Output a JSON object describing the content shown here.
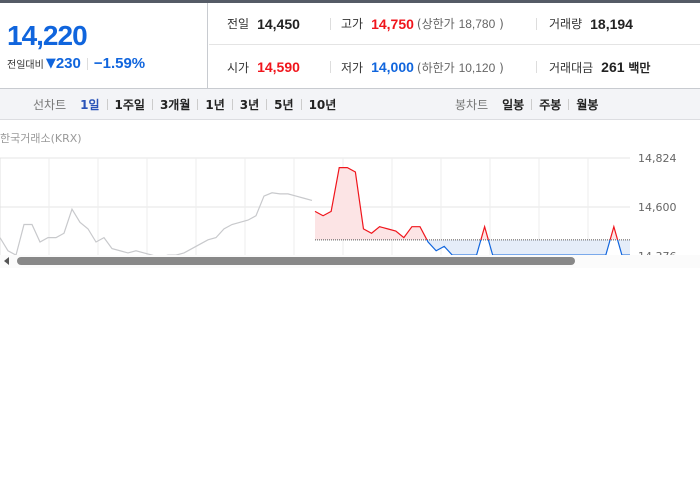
{
  "quote": {
    "price": "14,220",
    "change_label": "전일대비",
    "change_icon": "down-triangle-icon",
    "change_symbol": "▼",
    "change": "230",
    "change_pct": "−1.59%"
  },
  "stats": {
    "prev_label": "전일",
    "prev": "14,450",
    "high_label": "고가",
    "high": "14,750",
    "upper_label": "(상한가",
    "upper": "18,780",
    "upper_close": ")",
    "volume_label": "거래량",
    "volume": "18,194",
    "open_label": "시가",
    "open": "14,590",
    "low_label": "저가",
    "low": "14,000",
    "lower_label": "(하한가",
    "lower": "10,120",
    "lower_close": ")",
    "amount_label": "거래대금",
    "amount": "261",
    "amount_unit": "백만"
  },
  "toolbar": {
    "line_label": "선차트",
    "line_periods": [
      "1일",
      "1주일",
      "3개월",
      "1년",
      "3년",
      "5년",
      "10년"
    ],
    "active": "1일",
    "candle_label": "봉차트",
    "candle_periods": [
      "일봉",
      "주봉",
      "월봉"
    ]
  },
  "colors": {
    "up": "#f0151c",
    "down": "#1065dd",
    "prev_day": "#c8c9cc",
    "up_fill": "#fce4e5",
    "down_fill": "#e5edf9"
  },
  "chart_data": {
    "type": "line",
    "source": "한국거래소(KRX)",
    "ytick_labels": [
      "14,824",
      "14,600",
      "14,376"
    ],
    "yticks": [
      14824,
      14600,
      14376
    ],
    "baseline": 14450,
    "grid": true,
    "series": [
      {
        "values": [
          14460,
          14400,
          14380,
          14520,
          14520,
          14440,
          14460,
          14460,
          14480,
          14590,
          14530,
          14500,
          14440,
          14460,
          14410,
          14400,
          14390,
          14400,
          14390,
          14380,
          14370,
          14380,
          14380,
          14390,
          14410,
          14430,
          14450,
          14460,
          14500,
          14520,
          14530,
          14540,
          14560,
          14650,
          14665,
          14660,
          14660,
          14650,
          14640,
          14630
        ]
      },
      {
        "values": [
          14580,
          14560,
          14580,
          14780,
          14780,
          14760,
          14500,
          14480,
          14510,
          14500,
          14490,
          14460,
          14510,
          14510,
          14440,
          14400,
          14420,
          14380,
          14380,
          14380,
          14380,
          14510,
          14380,
          14380,
          14380,
          14380,
          14380,
          14380,
          14380,
          14380,
          14380,
          14380,
          14380,
          14380,
          14380,
          14380,
          14380,
          14510,
          14380,
          14380
        ]
      }
    ]
  }
}
